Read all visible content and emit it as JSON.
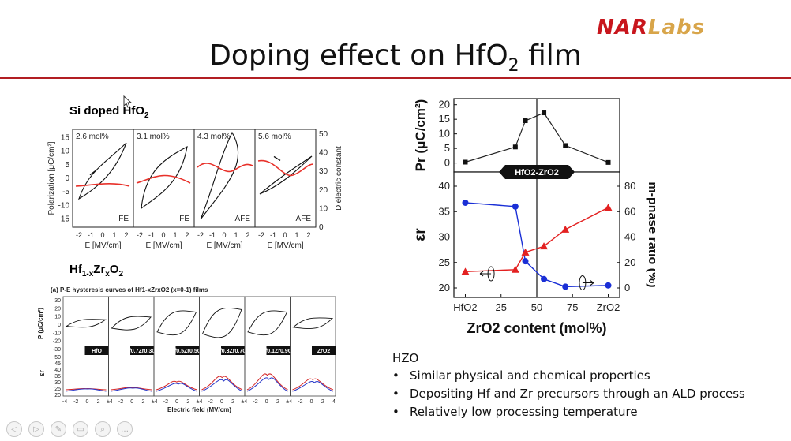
{
  "logo": {
    "nar": "NAR",
    "labs": "Labs"
  },
  "title": {
    "main": "Doping effect on HfO",
    "sub": "2",
    "tail": " film"
  },
  "si_panel": {
    "heading": "Si doped HfO",
    "heading_sub": "2",
    "ylabel": "Polarization [μC/cm²]",
    "ylabel2": "Dielectric constant",
    "xlabel": "E [MV/cm]",
    "panels": [
      {
        "conc": "2.6 mol%",
        "phase": "FE"
      },
      {
        "conc": "3.1 mol%",
        "phase": "FE"
      },
      {
        "conc": "4.3 mol%",
        "phase": "AFE"
      },
      {
        "conc": "5.6 mol%",
        "phase": "AFE"
      }
    ],
    "yticks": [
      "15",
      "10",
      "5",
      "0",
      "-5",
      "-10",
      "-15"
    ],
    "y2ticks": [
      "50",
      "40",
      "30",
      "20",
      "10",
      "0"
    ],
    "xticks": [
      "-2",
      "-1",
      "0",
      "1",
      "2"
    ]
  },
  "hzo_panel": {
    "heading": "Hf",
    "heading_sub1": "1-x",
    "heading_mid": "Zr",
    "heading_sub2": "x",
    "heading_end": "O",
    "heading_sub3": "2",
    "caption": "(a) P-E hysteresis curves of Hf1-xZrxO2 (x=0-1) films",
    "ylabel_p": "P (μC/cm²)",
    "ylabel_e": "εr",
    "xlabel": "Electric field (MV/cm)",
    "p_ticks": [
      "30",
      "20",
      "10",
      "0",
      "-10",
      "-20",
      "-30"
    ],
    "e_ticks": [
      "50",
      "45",
      "40",
      "35",
      "30",
      "25",
      "20"
    ],
    "xticks": [
      "-4",
      "-2",
      "0",
      "2",
      "±4",
      "-2",
      "0",
      "2",
      "±4",
      "-2",
      "0",
      "2",
      "±4",
      "-2",
      "0",
      "2",
      "±4",
      "-2",
      "0",
      "2",
      "±4",
      "-2",
      "0",
      "2",
      "4"
    ],
    "tags": [
      "HfO",
      "Hf0.7Zr0.3O2",
      "Hf0.5Zr0.5O2",
      "Hf0.3Zr0.7O2",
      "Hf0.1Zr0.9O2",
      "ZrO2"
    ]
  },
  "chart_data": [
    {
      "type": "line",
      "ylabel": "Pr (μC/cm²)",
      "x": [
        0,
        35,
        42,
        55,
        70,
        100
      ],
      "series": [
        {
          "values": [
            0.3,
            5.5,
            14.5,
            17.2,
            6.0,
            0.2
          ]
        }
      ],
      "ylim": [
        -2,
        21
      ],
      "yticks": [
        0,
        5,
        10,
        15,
        20
      ],
      "divider_x": 50,
      "band_label": "HfO2-ZrO2"
    },
    {
      "type": "line",
      "xlabel": "ZrO2 content (mol%)",
      "ylabel": "εr",
      "ylabel_right": "m-phase ratio (%)",
      "xticks": [
        "HfO2",
        "25",
        "50",
        "75",
        "ZrO2"
      ],
      "xlim": [
        -8,
        108
      ],
      "yticks": [
        20,
        25,
        30,
        35,
        40
      ],
      "yticks_right": [
        0,
        20,
        40,
        60,
        80
      ],
      "series": [
        {
          "axis": "right",
          "color": "#1a2fd6",
          "marker": "circle",
          "x": [
            0,
            35,
            42,
            55,
            70,
            100
          ],
          "values": [
            67,
            64,
            21,
            7,
            1,
            2
          ]
        },
        {
          "axis": "left",
          "color": "#e32121",
          "marker": "triangle",
          "x": [
            0,
            35,
            42,
            55,
            70,
            100
          ],
          "values": [
            23.2,
            23.6,
            27.0,
            28.2,
            31.5,
            35.8
          ]
        }
      ]
    }
  ],
  "hzo": {
    "label": "HZO",
    "bullets": [
      "Similar physical and chemical properties",
      "Depositing Hf and Zr precursors through an ALD process",
      "Relatively low processing temperature"
    ]
  },
  "toolbar": [
    "◁",
    "▷",
    "✎",
    "▭",
    "⌕",
    "…"
  ]
}
